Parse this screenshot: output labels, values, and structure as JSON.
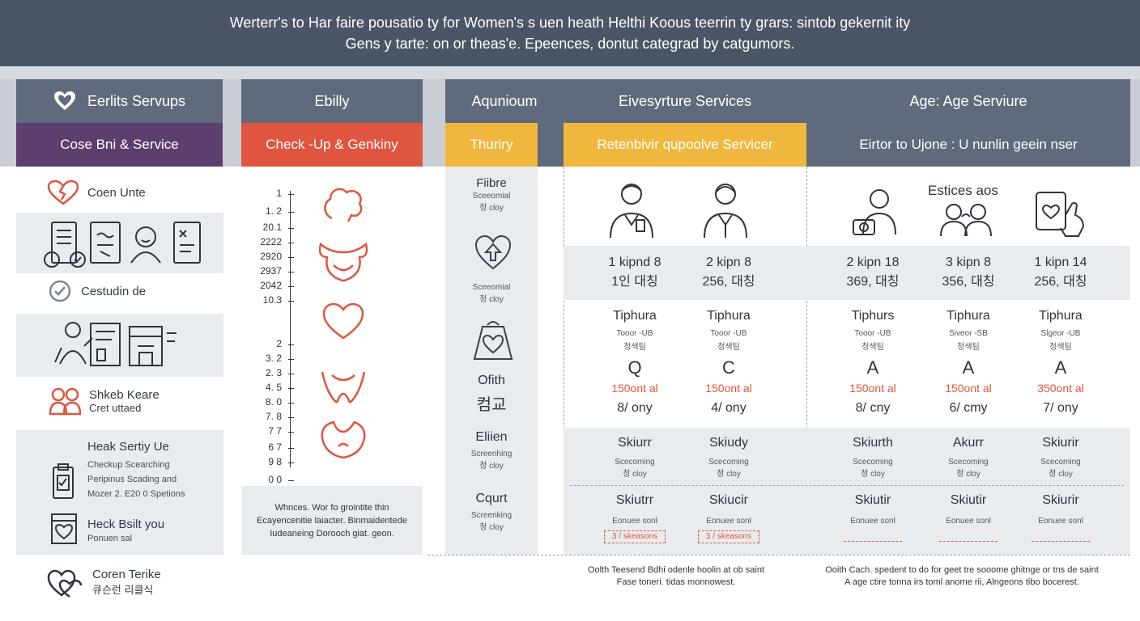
{
  "header": {
    "line1": "Werterr's to Har faire pousatio ty for Women's s uen heath Helthi Koous teerrin ty grars: sintob gekernit ity",
    "line2": "Gens y tarte: on or theas'e. Epeences, dontut categrad by catgumors."
  },
  "columns": {
    "col1": {
      "title": "Eerlits Servups",
      "subtitle": "Cose Bni & Service"
    },
    "col2": {
      "title": "Ebilly",
      "subtitle": "Check -Up & Genkiny"
    },
    "col3": {
      "title": "Aqunioum",
      "subtitle": "Thuriry"
    },
    "col4": {
      "title": "Eivesyrture Services",
      "subtitle": "Retenbivir qupoolve Servicer"
    },
    "col5": {
      "title": "Age: Age Serviure",
      "subtitle": "Eirtor to Ujone  :  U nunlin geein nser"
    }
  },
  "sidebar": {
    "item1": "Coen Unte",
    "item2": "Cestudin de",
    "item3_title": "Shkeb Keare",
    "item3_sub": "Cret uttaed",
    "block4_title": "Heak Sertiy Ue",
    "block4_lines": [
      "Checkup Scearching",
      "Peripinus Scading and",
      "Mozer 2. E20 0 Spetions"
    ],
    "block5_title": "Heck Bsilt you",
    "block5_sub": "Ponuen sal",
    "footer_title": "Coren Terike",
    "footer_sub": "큐슨런 리클식"
  },
  "scale": {
    "values": [
      "1",
      "1. 2",
      "20.1",
      "2222",
      "2920",
      "2937",
      "2042",
      "10.3",
      "2",
      "3. 2",
      "2. 3",
      "4. 5",
      "8. 0",
      "7. 8",
      "7  7",
      "6  7",
      "9  8",
      "0  0"
    ],
    "note": [
      "Whnces. Wor fo grointite thin",
      "Ecayencenitie laiacter. Binmaidentede",
      "Iudeaneing Dorooch giat. geon."
    ]
  },
  "col3": {
    "item1_title": "Fiibre",
    "item1_sub": [
      "Sceeomial",
      "청 cloy"
    ],
    "item2_sub": [
      "Sceeomial",
      "청 cloy"
    ],
    "item3_title": "Ofith",
    "item3_big": "컴교",
    "item4_title": "Eliien",
    "item4_sub": [
      "Screenhing",
      "청 cloy"
    ],
    "item5_title": "Cqurt",
    "item5_sub": [
      "Screenking",
      "청 cloy"
    ]
  },
  "col5_label": "Estices aos",
  "grid": {
    "codes": [
      {
        "l1": "1 kipnd 8",
        "l2": "1인 대칭"
      },
      {
        "l1": "2 kipn 8",
        "l2": "256, 대칭"
      },
      {
        "l1": "2 kipn 18",
        "l2": "369, 대칭"
      },
      {
        "l1": "3 kipn 8",
        "l2": "356, 대칭"
      },
      {
        "l1": "1 kipn 14",
        "l2": "256, 대칭"
      }
    ],
    "tiers": [
      {
        "name": "Tiphura",
        "a": "Tooor -UB",
        "b": "청색팀",
        "grade": "Q",
        "price": "150ont al",
        "per": "8/ ony"
      },
      {
        "name": "Tiphura",
        "a": "Tooor -UB",
        "b": "청색팀",
        "grade": "C",
        "price": "150ont al",
        "per": "4/ ony"
      },
      {
        "name": "Tiphurs",
        "a": "Tooor -UB",
        "b": "청색팀",
        "grade": "A",
        "price": "150ont al",
        "per": "8/ cny"
      },
      {
        "name": "Tiphura",
        "a": "Siveor -SB",
        "b": "청색팀",
        "grade": "A",
        "price": "150ont al",
        "per": "6/ cmy"
      },
      {
        "name": "Tiphura",
        "a": "Slgeor -UB",
        "b": "청색팀",
        "grade": "A",
        "price": "350ont al",
        "per": "7/ ony"
      }
    ],
    "screen1": [
      {
        "t": "Skiurr",
        "s1": "Scecoming",
        "s2": "청 cloy"
      },
      {
        "t": "Skiudy",
        "s1": "Scecoming",
        "s2": "청 cloy"
      },
      {
        "t": "Skiurth",
        "s1": "Scecoming",
        "s2": "청 cloy"
      },
      {
        "t": "Akurr",
        "s1": "Scecoming",
        "s2": "청 cloy"
      },
      {
        "t": "Skiurir",
        "s1": "Scecoming",
        "s2": "청 cloy"
      }
    ],
    "screen2": [
      {
        "t": "Skiutrr",
        "s1": "Eonuee sonl",
        "s2": "3 / skeasons"
      },
      {
        "t": "Skiucir",
        "s1": "Eonuee sonl",
        "s2": "3 / skeasons"
      },
      {
        "t": "Skiutir",
        "s1": "Eonuee sonl",
        "s2": ""
      },
      {
        "t": "Skiutir",
        "s1": "Eonuee sonl",
        "s2": ""
      },
      {
        "t": "Skiurir",
        "s1": "Eonuee sonl",
        "s2": ""
      }
    ]
  },
  "footnotes": {
    "left": [
      "Oolth Teesend Bdhi odenle hoolin at ob saint",
      "Fase toneri. tidas monnowest."
    ],
    "right": [
      "Ooith Cach. spedent to do for geet tre sooome ghitnge or tns de saint",
      "A age ctire tonna irs toml anome rii, Alngeons tibo bocerest."
    ]
  },
  "colors": {
    "header": "#4a5566",
    "purple": "#5c3f6e",
    "orange": "#e0553f",
    "yellow": "#f0b73e",
    "slate": "#5f6b7c",
    "panel": "#e8ecef"
  }
}
